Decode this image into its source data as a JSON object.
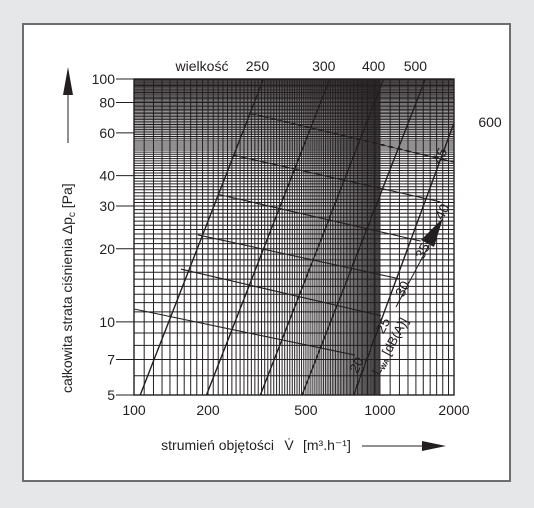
{
  "chart_data": {
    "type": "line",
    "x_axis": {
      "label": "strumień objętości",
      "symbol": "V̇",
      "unit": "[m³.h⁻¹]",
      "scale": "log",
      "range": [
        100,
        2000
      ],
      "ticks": [
        "100",
        "200",
        "500",
        "1000",
        "2000"
      ]
    },
    "y_axis": {
      "label": "całkowita strata ciśnienia",
      "symbol": "Δp",
      "symbol_subscript": "c",
      "unit": "[Pa]",
      "scale": "log",
      "range": [
        5,
        100
      ],
      "ticks": [
        "5",
        "7",
        "10",
        "20",
        "30",
        "40",
        "60",
        "80",
        "100"
      ]
    },
    "size_label": "wielkość",
    "size_lines": [
      {
        "size": "250",
        "points": [
          [
            100,
            4.3
          ],
          [
            336,
            100
          ]
        ]
      },
      {
        "size": "300",
        "points": [
          [
            186,
            4.3
          ],
          [
            625,
            100
          ]
        ]
      },
      {
        "size": "400",
        "points": [
          [
            308,
            4.3
          ],
          [
            1035,
            100
          ]
        ]
      },
      {
        "size": "500",
        "points": [
          [
            455,
            4.3
          ],
          [
            1530,
            100
          ]
        ]
      },
      {
        "size": "600",
        "points": [
          [
            740,
            4.3
          ],
          [
            2000,
            66
          ]
        ]
      }
    ],
    "noise_label_symbol": "L",
    "noise_label_subscript": "WA",
    "noise_label_unit": "[dB(A)]",
    "noise_lines": [
      {
        "level": "20",
        "points": [
          [
            100,
            11.3
          ],
          [
            790,
            7.3
          ]
        ]
      },
      {
        "level": "25",
        "points": [
          [
            155,
            16.5
          ],
          [
            1010,
            10.6
          ]
        ]
      },
      {
        "level": "30",
        "points": [
          [
            182,
            22.8
          ],
          [
            1215,
            15.0
          ]
        ]
      },
      {
        "level": "35",
        "points": [
          [
            220,
            33.5
          ],
          [
            1465,
            21.5
          ]
        ]
      },
      {
        "level": "40",
        "points": [
          [
            255,
            48.5
          ],
          [
            1760,
            31.2
          ]
        ]
      },
      {
        "level": "45",
        "points": [
          [
            300,
            72.0
          ],
          [
            2000,
            45.5
          ]
        ]
      }
    ],
    "colors": {
      "line": "#231f20",
      "background": "#ffffff",
      "page": "#e6e7e8",
      "frame": "#6d6e70"
    }
  }
}
